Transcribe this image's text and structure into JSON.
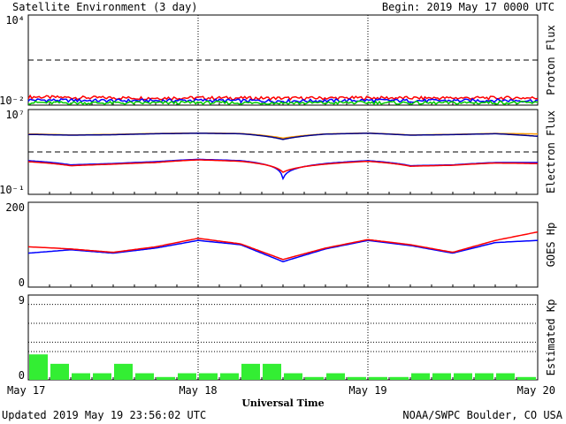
{
  "header": {
    "title": "Satellite Environment (3 day)",
    "begin": "Begin:  2019 May 17 0000 UTC"
  },
  "footer": {
    "updated": "Updated 2019 May 19 23:56:02 UTC",
    "credit": "NOAA/SWPC Boulder, CO USA"
  },
  "chart_data": [
    {
      "type": "line",
      "ylabel": "Proton Flux",
      "yscale": "log",
      "yticks": [
        "10⁴",
        "10⁻²"
      ],
      "ylim": [
        0.01,
        10000
      ],
      "threshold": 10,
      "series": [
        {
          "color": "#ff0000",
          "values": [
            0.036,
            0.032,
            0.031,
            0.03,
            0.031,
            0.03,
            0.029,
            0.03,
            0.031,
            0.03,
            0.03,
            0.031,
            0.03
          ]
        },
        {
          "color": "#0000ff",
          "values": [
            0.022,
            0.021,
            0.02,
            0.02,
            0.021,
            0.02,
            0.019,
            0.02,
            0.021,
            0.02,
            0.02,
            0.021,
            0.02
          ]
        },
        {
          "color": "#00cc00",
          "values": [
            0.015,
            0.014,
            0.014,
            0.014,
            0.015,
            0.014,
            0.014,
            0.014,
            0.015,
            0.014,
            0.014,
            0.015,
            0.014
          ]
        }
      ]
    },
    {
      "type": "line",
      "ylabel": "Electron Flux",
      "yscale": "log",
      "yticks": [
        "10⁷",
        "10⁻¹"
      ],
      "ylim": [
        0.1,
        10000000
      ],
      "threshold": 1000,
      "series": [
        {
          "color": "#ff9900",
          "values": [
            50000,
            40000,
            45000,
            55000,
            60000,
            55000,
            20000,
            50000,
            60000,
            40000,
            45000,
            55000,
            50000
          ]
        },
        {
          "color": "#000088",
          "values": [
            45000,
            38000,
            42000,
            52000,
            58000,
            52000,
            15000,
            48000,
            58000,
            38000,
            43000,
            52000,
            30000
          ]
        },
        {
          "color": "#0000ff",
          "values": [
            150,
            60,
            80,
            120,
            200,
            150,
            3,
            80,
            150,
            50,
            60,
            100,
            100
          ]
        },
        {
          "color": "#ff0000",
          "values": [
            120,
            50,
            70,
            100,
            180,
            130,
            12,
            70,
            130,
            45,
            55,
            90,
            80
          ]
        }
      ]
    },
    {
      "type": "line",
      "ylabel": "GOES Hp",
      "yticks": [
        "200",
        "0"
      ],
      "ylim": [
        0,
        200
      ],
      "series": [
        {
          "color": "#0000ff",
          "values": [
            80,
            88,
            80,
            92,
            110,
            100,
            60,
            90,
            110,
            98,
            80,
            105,
            110
          ]
        },
        {
          "color": "#ff0000",
          "values": [
            95,
            90,
            82,
            95,
            115,
            102,
            65,
            92,
            112,
            100,
            82,
            110,
            130
          ]
        }
      ]
    },
    {
      "type": "bar",
      "ylabel": "Estimated Kp",
      "yticks": [
        "9",
        "0"
      ],
      "ylim": [
        0,
        9
      ],
      "values": [
        2.7,
        1.7,
        0.7,
        0.7,
        1.7,
        0.7,
        0.3,
        0.7,
        0.7,
        0.7,
        1.7,
        1.7,
        0.7,
        0.3,
        0.7,
        0.3,
        0.3,
        0.3,
        0.7,
        0.7,
        0.7,
        0.7,
        0.7,
        0.3
      ],
      "x_ticks": [
        "May 17",
        "May 18",
        "May 19",
        "May 20"
      ],
      "xlabel": "Universal Time"
    }
  ]
}
